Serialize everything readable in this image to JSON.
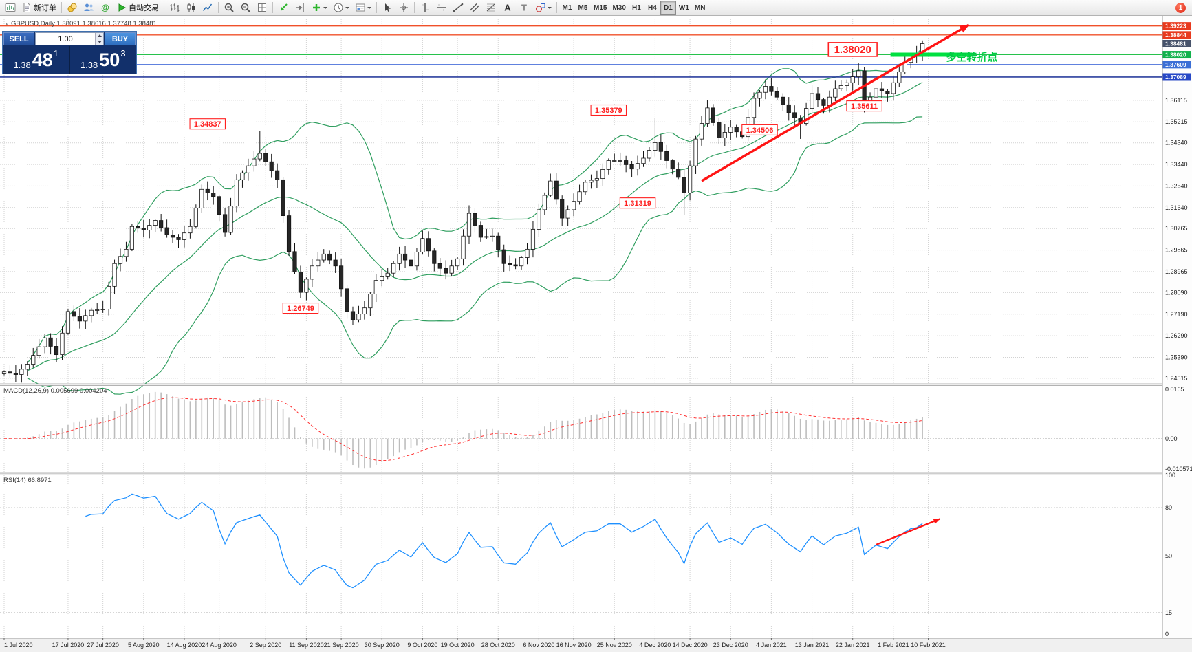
{
  "toolbar": {
    "new_order_label": "新订单",
    "autotrading_label": "自动交易",
    "timeframes": [
      "M1",
      "M5",
      "M15",
      "M30",
      "H1",
      "H4",
      "D1",
      "W1",
      "MN"
    ],
    "active_timeframe": "D1",
    "badge": "1",
    "buttons": [
      {
        "name": "new-chart-button",
        "icon": "chart-window"
      },
      {
        "name": "new-order-button",
        "icon": "page",
        "label": "新订单"
      },
      {
        "sep": true
      },
      {
        "name": "market-watch-button",
        "icon": "coins"
      },
      {
        "name": "community-button",
        "icon": "users"
      },
      {
        "name": "mql5-community-button",
        "icon": "at"
      },
      {
        "name": "autotrading-button",
        "icon": "play",
        "label": "自动交易"
      },
      {
        "sep": true
      },
      {
        "name": "bar-chart-button",
        "icon": "bars"
      },
      {
        "name": "candlestick-chart-button",
        "icon": "candles"
      },
      {
        "name": "line-chart-button",
        "icon": "line-chart"
      },
      {
        "sep": true
      },
      {
        "name": "zoom-in-button",
        "icon": "zoom-in"
      },
      {
        "name": "zoom-out-button",
        "icon": "zoom-out"
      },
      {
        "name": "tile-windows-button",
        "icon": "tile"
      },
      {
        "sep": true
      },
      {
        "name": "auto-scroll-button",
        "icon": "auto-scroll"
      },
      {
        "name": "chart-shift-button",
        "icon": "chart-shift"
      },
      {
        "name": "indicators-button",
        "icon": "indicator-plus",
        "caret": true
      },
      {
        "name": "periods-button",
        "icon": "clock",
        "caret": true
      },
      {
        "name": "templates-button",
        "icon": "template",
        "caret": true
      },
      {
        "sep": true
      },
      {
        "name": "cursor-button",
        "icon": "cursor"
      },
      {
        "name": "crosshair-button",
        "icon": "crosshair"
      },
      {
        "sep": true
      },
      {
        "name": "vertical-line-button",
        "icon": "vline"
      },
      {
        "name": "horizontal-line-button",
        "icon": "hline"
      },
      {
        "name": "trendline-button",
        "icon": "trendline"
      },
      {
        "name": "channel-button",
        "icon": "channel"
      },
      {
        "name": "fibonacci-button",
        "icon": "fibonacci"
      },
      {
        "name": "text-button",
        "icon": "text-a"
      },
      {
        "name": "text-label-button",
        "icon": "text-t"
      },
      {
        "name": "shapes-button",
        "icon": "shapes",
        "caret": true
      },
      {
        "sep": true
      }
    ]
  },
  "trade_panel": {
    "sell_label": "SELL",
    "buy_label": "BUY",
    "volume_value": "1.00",
    "sell_price": {
      "base": "1.38",
      "pips": "48",
      "point": "1"
    },
    "buy_price": {
      "base": "1.38",
      "pips": "50",
      "point": "3"
    }
  },
  "chart_data": {
    "type": "candlestick",
    "symbol": "GBPUSD",
    "timeframe": "Daily",
    "title": "GBPUSD,Daily",
    "title_marker": "▲",
    "ohlc": "1.38091 1.38616 1.37748 1.38481",
    "first_open": 1.247,
    "bollinger_period": 20,
    "colors": {
      "bull": "#ffffff",
      "bear": "#262626",
      "outline": "#141414",
      "bollinger": "#2f9e5f",
      "grid": "#d2d2d2",
      "macd_hist": "#bdbdbd",
      "macd_signal": "#ff3030",
      "rsi_line": "#1e90ff"
    },
    "closes": [
      1.2478,
      1.2472,
      1.2467,
      1.2489,
      1.251,
      1.2547,
      1.2583,
      1.262,
      1.2585,
      1.255,
      1.264,
      1.273,
      1.271,
      1.269,
      1.2713,
      1.2735,
      1.2737,
      1.274,
      1.2835,
      1.293,
      1.296,
      1.299,
      1.3085,
      1.3078,
      1.307,
      1.309,
      1.311,
      1.308,
      1.305,
      1.304,
      1.303,
      1.3058,
      1.3085,
      1.3162,
      1.324,
      1.3225,
      1.321,
      1.3135,
      1.306,
      1.317,
      1.328,
      1.3309,
      1.3338,
      1.3367,
      1.339,
      1.3355,
      1.3318,
      1.328,
      1.313,
      1.298,
      1.2895,
      1.281,
      1.2865,
      1.292,
      1.2945,
      1.297,
      1.2945,
      1.292,
      1.2825,
      1.273,
      1.2695,
      1.272,
      1.2745,
      1.2803,
      1.286,
      1.2875,
      1.289,
      1.293,
      1.297,
      1.2945,
      1.292,
      1.2978,
      1.3035,
      1.2983,
      1.293,
      1.291,
      1.289,
      1.292,
      1.295,
      1.3045,
      1.314,
      1.309,
      1.304,
      1.3043,
      1.3045,
      1.2988,
      1.293,
      1.2925,
      1.292,
      1.2955,
      1.299,
      1.3073,
      1.3155,
      1.3215,
      1.3275,
      1.3198,
      1.312,
      1.3155,
      1.319,
      1.323,
      1.327,
      1.3278,
      1.3285,
      1.3323,
      1.336,
      1.336,
      1.336,
      1.3343,
      1.3325,
      1.3348,
      1.337,
      1.3403,
      1.3435,
      1.3398,
      1.336,
      1.3325,
      1.329,
      1.3225,
      1.3338,
      1.345,
      1.3515,
      1.358,
      1.3518,
      1.3455,
      1.3478,
      1.35,
      1.348,
      1.346,
      1.354,
      1.362,
      1.3645,
      1.367,
      1.3648,
      1.3625,
      1.3593,
      1.356,
      1.3538,
      1.3515,
      1.3578,
      1.364,
      1.3615,
      1.359,
      1.3625,
      1.366,
      1.3673,
      1.3685,
      1.371,
      1.3735,
      1.359,
      1.3625,
      1.366,
      1.365,
      1.364,
      1.3685,
      1.373,
      1.377,
      1.38,
      1.3809,
      1.3848
    ],
    "extremes": {
      "44": {
        "high": 1.34837
      },
      "60": {
        "low": 1.26749
      },
      "112": {
        "high": 1.35379
      },
      "117": {
        "low": 1.31319
      },
      "137": {
        "low": 1.34506
      },
      "148": {
        "low": 1.35611
      },
      "158": {
        "high": 1.38616,
        "low": 1.37748
      }
    },
    "price_axis": {
      "grid": [
        {
          "p": 1.36115,
          "label": "1.36115"
        },
        {
          "p": 1.35215,
          "label": "1.35215"
        },
        {
          "p": 1.3434,
          "label": "1.34340"
        },
        {
          "p": 1.3344,
          "label": "1.33440"
        },
        {
          "p": 1.3254,
          "label": "1.32540"
        },
        {
          "p": 1.3164,
          "label": "1.31640"
        },
        {
          "p": 1.30765,
          "label": "1.30765"
        },
        {
          "p": 1.29865,
          "label": "1.29865"
        },
        {
          "p": 1.28965,
          "label": "1.28965"
        },
        {
          "p": 1.2809,
          "label": "1.28090"
        },
        {
          "p": 1.2719,
          "label": "1.27190"
        },
        {
          "p": 1.2629,
          "label": "1.26290"
        },
        {
          "p": 1.2539,
          "label": "1.25390"
        },
        {
          "p": 1.24515,
          "label": "1.24515"
        }
      ],
      "tags": [
        {
          "p": 1.39223,
          "label": "1.39223",
          "bg": "#e8391d"
        },
        {
          "p": 1.38844,
          "label": "1.38844",
          "bg": "#e8391d"
        },
        {
          "p": 1.38481,
          "label": "1.38481",
          "bg": "#47536b"
        },
        {
          "p": 1.3802,
          "label": "1.38020",
          "bg": "#11b24c"
        },
        {
          "p": 1.37609,
          "label": "1.37609",
          "bg": "#3b6fd6"
        },
        {
          "p": 1.37089,
          "label": "1.37089",
          "bg": "#2748c6"
        }
      ]
    },
    "hlines": [
      {
        "p": 1.39223,
        "color": "#f0502a",
        "w": 1.4
      },
      {
        "p": 1.38844,
        "color": "#f0502a",
        "w": 1.4
      },
      {
        "p": 1.3802,
        "color": "#27c24c",
        "w": 1
      },
      {
        "p": 1.37609,
        "color": "#4a6fd9",
        "w": 1.4
      },
      {
        "p": 1.37089,
        "color": "#2b3f9e",
        "w": 1.6
      }
    ],
    "support_segment": {
      "p": 1.3802,
      "from_i": 152.5,
      "to_i": 166.5,
      "color": "#00e040",
      "w": 6
    },
    "annotations": [
      {
        "text": "1.34837",
        "i": 35,
        "p": 1.3513
      },
      {
        "text": "1.26749",
        "i": 51,
        "p": 1.2744
      },
      {
        "text": "1.35379",
        "i": 104,
        "p": 1.3571
      },
      {
        "text": "1.31319",
        "i": 109,
        "p": 1.3183
      },
      {
        "text": "1.34506",
        "i": 130,
        "p": 1.3488
      },
      {
        "text": "1.35611",
        "i": 148,
        "p": 1.3588
      },
      {
        "text": "1.38020",
        "i": 146,
        "p": 1.3824,
        "big": true
      }
    ],
    "trend_arrow": {
      "from": {
        "i": 120,
        "p": 1.3275
      },
      "to": {
        "i": 166,
        "p": 1.3927
      },
      "color": "#ff1414"
    },
    "turning_point_label": {
      "text": "多空转折点",
      "i": 166.5,
      "p": 1.3778,
      "color": "#00cc44"
    },
    "date_axis": [
      {
        "i": 0,
        "label": "1 Jul 2020"
      },
      {
        "i": 11,
        "label": "17 Jul 2020"
      },
      {
        "i": 17,
        "label": "27 Jul 2020"
      },
      {
        "i": 24,
        "label": "5 Aug 2020"
      },
      {
        "i": 31,
        "label": "14 Aug 2020"
      },
      {
        "i": 37,
        "label": "24 Aug 2020"
      },
      {
        "i": 45,
        "label": "2 Sep 2020"
      },
      {
        "i": 52,
        "label": "11 Sep 2020"
      },
      {
        "i": 58,
        "label": "21 Sep 2020"
      },
      {
        "i": 65,
        "label": "30 Sep 2020"
      },
      {
        "i": 72,
        "label": "9 Oct 2020"
      },
      {
        "i": 78,
        "label": "19 Oct 2020"
      },
      {
        "i": 85,
        "label": "28 Oct 2020"
      },
      {
        "i": 92,
        "label": "6 Nov 2020"
      },
      {
        "i": 98,
        "label": "16 Nov 2020"
      },
      {
        "i": 105,
        "label": "25 Nov 2020"
      },
      {
        "i": 112,
        "label": "4 Dec 2020"
      },
      {
        "i": 118,
        "label": "14 Dec 2020"
      },
      {
        "i": 125,
        "label": "23 Dec 2020"
      },
      {
        "i": 132,
        "label": "4 Jan 2021"
      },
      {
        "i": 139,
        "label": "13 Jan 2021"
      },
      {
        "i": 146,
        "label": "22 Jan 2021"
      },
      {
        "i": 153,
        "label": "1 Feb 2021"
      },
      {
        "i": 159,
        "label": "10 Feb 2021"
      }
    ],
    "macd": {
      "params": "MACD(12,26,9)",
      "values": "0.005699 0.004204",
      "fast": 12,
      "slow": 26,
      "signal": 9,
      "scale": {
        "top": 0.0165,
        "bottom": -0.010571,
        "top_label": "0.0165",
        "zero_label": "0.00",
        "bottom_label": "-0.010571"
      }
    },
    "rsi": {
      "label": "RSI(14)",
      "value": "66.8971",
      "period": 14,
      "levels": [
        80,
        50,
        15
      ],
      "scale_labels": [
        {
          "v": 100,
          "label": "100"
        },
        {
          "v": 80,
          "label": "80"
        },
        {
          "v": 50,
          "label": "50"
        },
        {
          "v": 15,
          "label": "15"
        },
        {
          "v": 0,
          "label": "0"
        }
      ],
      "arrow": {
        "from": {
          "i": 150,
          "v": 57
        },
        "to": {
          "i": 161,
          "v": 73
        },
        "color": "#ff1414"
      }
    }
  }
}
